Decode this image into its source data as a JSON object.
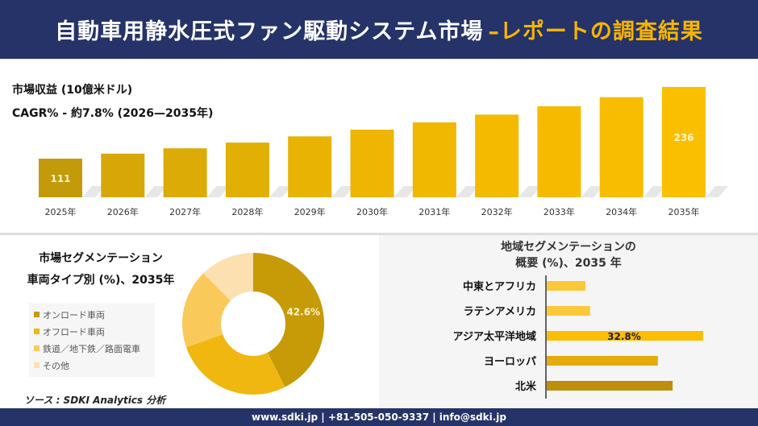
{
  "header": {
    "title_main": "自動車用静水圧式ファン駆動システム市場",
    "title_accent": "–レポートの調査結果"
  },
  "colors": {
    "navy": "#253368",
    "accent": "#f7b500"
  },
  "revenue": {
    "label": "市場収益 (10億米ドル)",
    "cagr": "CAGR% - 約7.8% (2026—2035年)"
  },
  "segment": {
    "title1": "市場セグメンテーション",
    "title2": "車両タイプ別 (%)、2035年"
  },
  "region": {
    "title1": "地域セグメンテーションの",
    "title2": "概要 (%)、2035 年"
  },
  "source": "ソース : SDKI Analytics 分析",
  "footer": "www.sdki.jp | +81-505-050-9337 | info@sdki.jp",
  "chart_data": [
    {
      "type": "bar",
      "categories": [
        "2025年",
        "2026年",
        "2027年",
        "2028年",
        "2029年",
        "2030年",
        "2031年",
        "2032年",
        "2033年",
        "2034年",
        "2035年"
      ],
      "values": [
        111,
        119.7,
        129,
        139,
        149.9,
        161.6,
        174.2,
        187.8,
        202.4,
        218.2,
        236
      ],
      "data_labels": {
        "0": "111",
        "10": "236"
      },
      "estimated": "2026–2034 values computed from 111 at the printed 7.8% CAGR; not printed on the chart",
      "colors": [
        "#c39a0a",
        "#d6a707",
        "#dcab05",
        "#e2af04",
        "#e8b303",
        "#eeb602",
        "#f1b801",
        "#f4ba00",
        "#f6bb00",
        "#f8bc00",
        "#fac000"
      ]
    },
    {
      "type": "pie",
      "donut": true,
      "labels": [
        "オンロード車両",
        "オフロード車両",
        "鉄道／地下鉄／路面電車",
        "その他"
      ],
      "values": [
        42.6,
        27.0,
        18.0,
        12.4
      ],
      "estimated": "only 42.6 is printed; the other three slices are read by eye",
      "data_labels": {
        "0": "42.6%"
      },
      "colors": [
        "#c79a08",
        "#efb710",
        "#f9c95a",
        "#fde0b0"
      ]
    },
    {
      "type": "bar",
      "orientation": "horizontal",
      "categories": [
        "中東とアフリカ",
        "ラテンアメリカ",
        "アジア太平洋地域",
        "ヨーロッパ",
        "北米"
      ],
      "values": [
        8.1,
        9.1,
        32.8,
        23.3,
        26.4
      ],
      "estimated": "only 32.8 is printed; the other bars are scaled from their pixel lengths",
      "data_labels": {
        "2": "32.8%"
      },
      "colors": [
        "#fcc83a",
        "#fcc83a",
        "#fbbd05",
        "#e3ab0b",
        "#bd8e0c"
      ]
    }
  ]
}
